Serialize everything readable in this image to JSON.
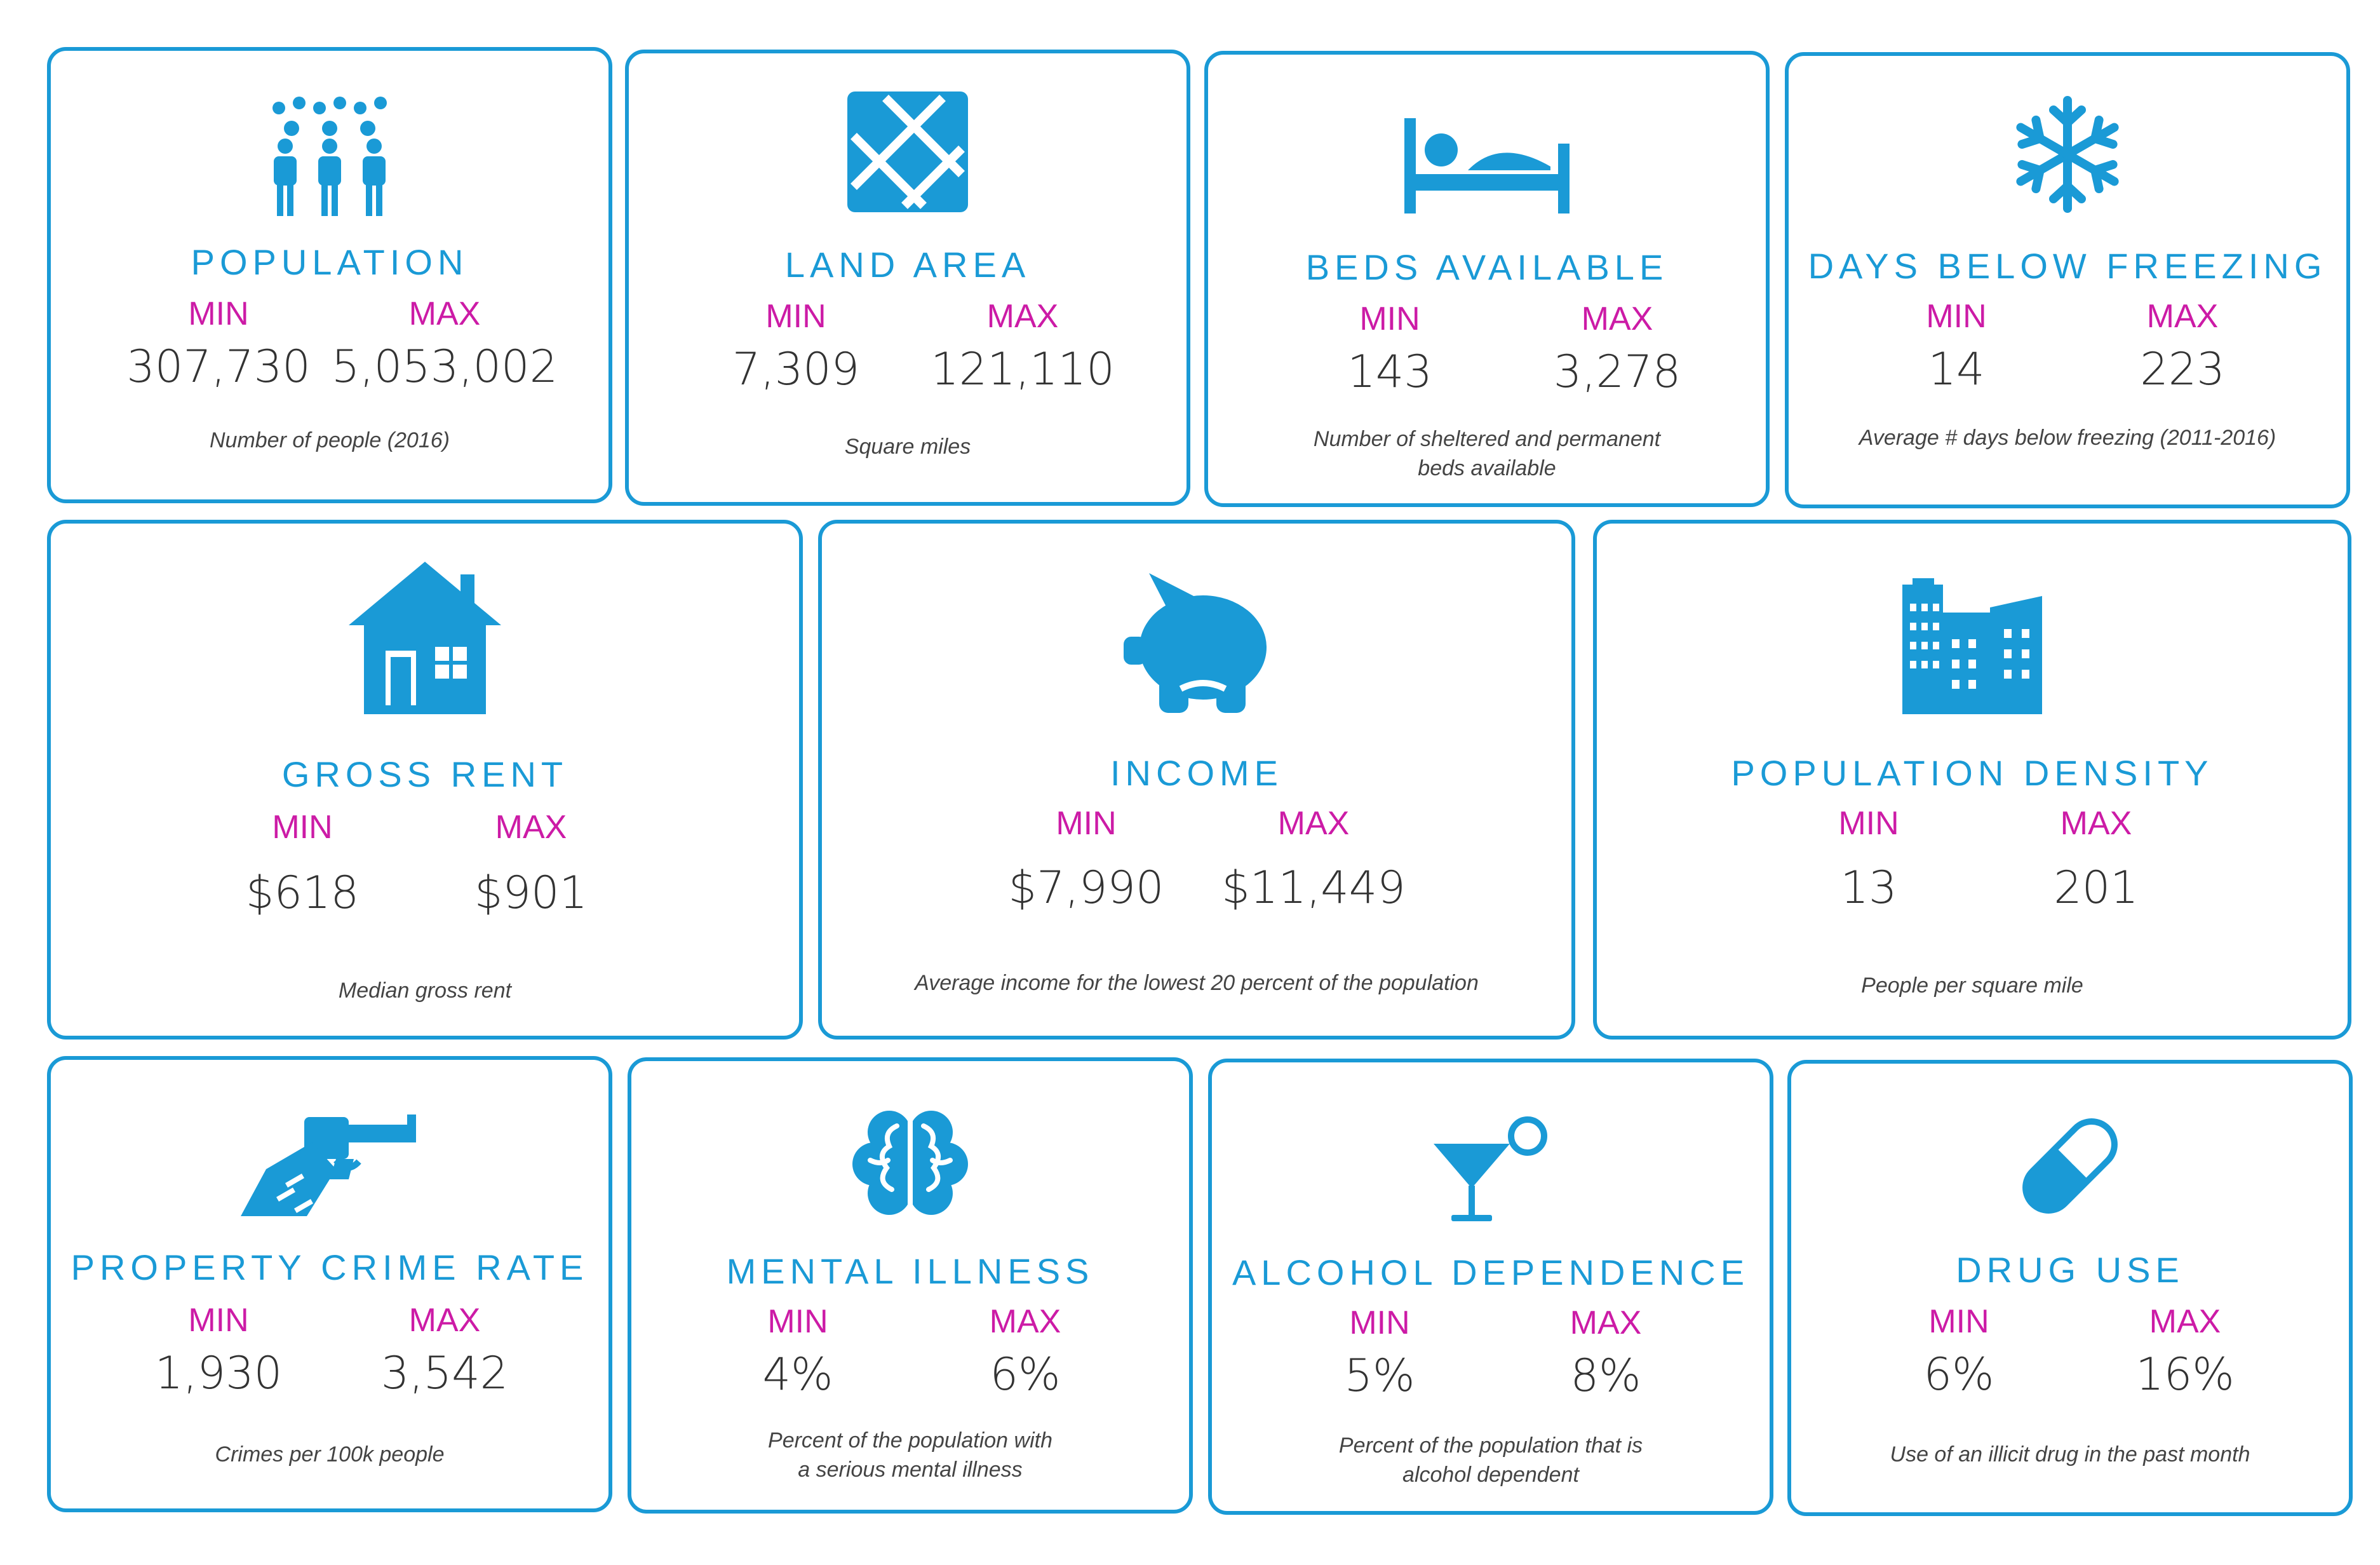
{
  "colors": {
    "accent": "#1a9ad6",
    "label": "#cc1ba6",
    "value": "#333333"
  },
  "cards": [
    {
      "icon": "people-icon",
      "title": "POPULATION",
      "min_label": "MIN",
      "max_label": "MAX",
      "min": "307,730",
      "max": "5,053,002",
      "desc1": "Number of people (2016)",
      "desc2": ""
    },
    {
      "icon": "map-icon",
      "title": "LAND AREA",
      "min_label": "MIN",
      "max_label": "MAX",
      "min": "7,309",
      "max": "121,110",
      "desc1": "Square miles",
      "desc2": ""
    },
    {
      "icon": "bed-icon",
      "title": "BEDS AVAILABLE",
      "min_label": "MIN",
      "max_label": "MAX",
      "min": "143",
      "max": "3,278",
      "desc1": "Number of sheltered and permanent",
      "desc2": "beds available"
    },
    {
      "icon": "snowflake-icon",
      "title": "DAYS BELOW FREEZING",
      "min_label": "MIN",
      "max_label": "MAX",
      "min": "14",
      "max": "223",
      "desc1": "Average # days below freezing (2011-2016)",
      "desc2": ""
    },
    {
      "icon": "house-icon",
      "title": "GROSS RENT",
      "min_label": "MIN",
      "max_label": "MAX",
      "min": "$618",
      "max": "$901",
      "desc1": "Median gross rent",
      "desc2": ""
    },
    {
      "icon": "piggy-bank-icon",
      "title": "INCOME",
      "min_label": "MIN",
      "max_label": "MAX",
      "min": "$7,990",
      "max": "$11,449",
      "desc1": "Average income for the lowest 20 percent of the population",
      "desc2": ""
    },
    {
      "icon": "buildings-icon",
      "title": "POPULATION DENSITY",
      "min_label": "MIN",
      "max_label": "MAX",
      "min": "13",
      "max": "201",
      "desc1": "People per square mile",
      "desc2": ""
    },
    {
      "icon": "gun-icon",
      "title": "PROPERTY CRIME RATE",
      "min_label": "MIN",
      "max_label": "MAX",
      "min": "1,930",
      "max": "3,542",
      "desc1": "Crimes per 100k people",
      "desc2": ""
    },
    {
      "icon": "brain-icon",
      "title": "MENTAL ILLNESS",
      "min_label": "MIN",
      "max_label": "MAX",
      "min": "4%",
      "max": "6%",
      "desc1": "Percent of the population with",
      "desc2": "a serious mental illness"
    },
    {
      "icon": "cocktail-icon",
      "title": "ALCOHOL DEPENDENCE",
      "min_label": "MIN",
      "max_label": "MAX",
      "min": "5%",
      "max": "8%",
      "desc1": "Percent of the population that is",
      "desc2": "alcohol dependent"
    },
    {
      "icon": "pill-icon",
      "title": "DRUG USE",
      "min_label": "MIN",
      "max_label": "MAX",
      "min": "6%",
      "max": "16%",
      "desc1": "Use of an illicit drug in the past month",
      "desc2": ""
    }
  ]
}
